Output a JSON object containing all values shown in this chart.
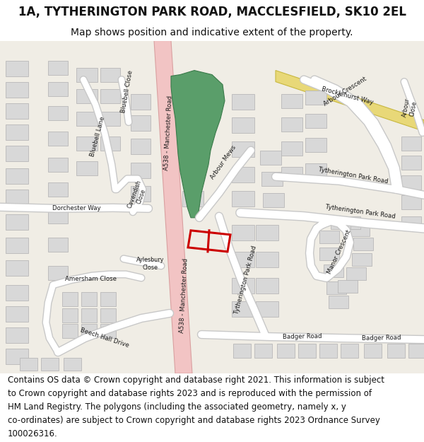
{
  "title_line1": "1A, TYTHERINGTON PARK ROAD, MACCLESFIELD, SK10 2EL",
  "title_line2": "Map shows position and indicative extent of the property.",
  "footer_text": "Contains OS data © Crown copyright and database right 2021. This information is subject to Crown copyright and database rights 2023 and is reproduced with the permission of HM Land Registry. The polygons (including the associated geometry, namely x, y co-ordinates) are subject to Crown copyright and database rights 2023 Ordnance Survey 100026316.",
  "bg_color": "#ffffff",
  "map_bg": "#f0ede5",
  "road_pink": "#f2c4c4",
  "road_pink_edge": "#d9a0a0",
  "road_white": "#ffffff",
  "road_edge": "#c8c8c8",
  "building_fill": "#d8d8d8",
  "building_edge": "#b8b8b8",
  "green_fill": "#5a9e6a",
  "green_edge": "#3a7a4a",
  "yellow_fill": "#e8d878",
  "yellow_edge": "#c8b840",
  "plot_color": "#cc0000",
  "plot_lw": 2.2,
  "title_fs": 12,
  "subtitle_fs": 10,
  "footer_fs": 8.5
}
